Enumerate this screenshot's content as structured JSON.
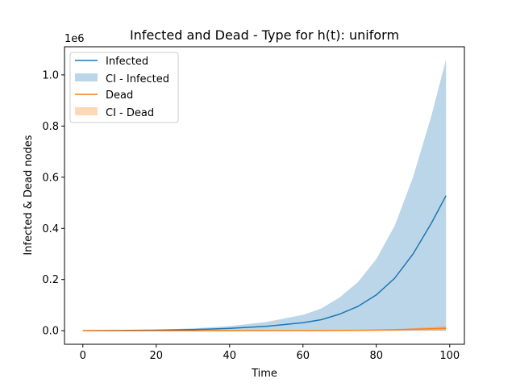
{
  "chart_data": {
    "type": "line",
    "title": "Infected and Dead - Type for h(t): uniform",
    "xlabel": "Time",
    "ylabel": "Infected & Dead nodes",
    "y_offset_label": "1e6",
    "xlim": [
      -5,
      104
    ],
    "ylim": [
      -0.053,
      1.11
    ],
    "x_ticks": [
      0,
      20,
      40,
      60,
      80,
      100
    ],
    "x_tick_labels": [
      "0",
      "20",
      "40",
      "60",
      "80",
      "100"
    ],
    "y_ticks": [
      0,
      0.2,
      0.4,
      0.6,
      0.8,
      1.0
    ],
    "y_tick_labels": [
      "0.0",
      "0.2",
      "0.4",
      "0.6",
      "0.8",
      "1.0"
    ],
    "grid": false,
    "legend_position": "upper-left",
    "x": [
      0,
      10,
      20,
      30,
      40,
      50,
      60,
      65,
      70,
      75,
      80,
      85,
      90,
      95,
      99
    ],
    "series": [
      {
        "name": "Infected",
        "kind": "line",
        "color": "#1f77b4",
        "values": [
          0.0002,
          0.0008,
          0.002,
          0.0045,
          0.009,
          0.017,
          0.031,
          0.043,
          0.065,
          0.095,
          0.14,
          0.205,
          0.3,
          0.42,
          0.528
        ]
      },
      {
        "name": "CI - Infected",
        "kind": "band",
        "color": "#1f77b4",
        "opacity": 0.3,
        "lower": [
          0,
          0,
          0,
          0,
          0,
          0,
          0,
          0,
          0,
          0,
          0,
          0,
          0,
          0,
          0
        ],
        "upper": [
          0.0004,
          0.0016,
          0.004,
          0.009,
          0.018,
          0.034,
          0.062,
          0.087,
          0.13,
          0.19,
          0.28,
          0.41,
          0.6,
          0.84,
          1.06
        ]
      },
      {
        "name": "Dead",
        "kind": "line",
        "color": "#ff7f0e",
        "values": [
          0,
          0,
          0,
          0,
          0.0001,
          0.0002,
          0.0004,
          0.0007,
          0.001,
          0.0016,
          0.0025,
          0.0038,
          0.0055,
          0.0078,
          0.0095
        ]
      },
      {
        "name": "CI - Dead",
        "kind": "band",
        "color": "#ff7f0e",
        "opacity": 0.3,
        "lower": [
          0,
          0,
          0,
          0,
          0,
          0,
          0,
          0,
          0,
          0,
          0,
          0,
          0,
          0,
          0
        ],
        "upper": [
          0,
          0,
          0,
          0,
          0.0002,
          0.0004,
          0.0008,
          0.0013,
          0.002,
          0.003,
          0.0047,
          0.007,
          0.01,
          0.014,
          0.018
        ]
      }
    ]
  }
}
